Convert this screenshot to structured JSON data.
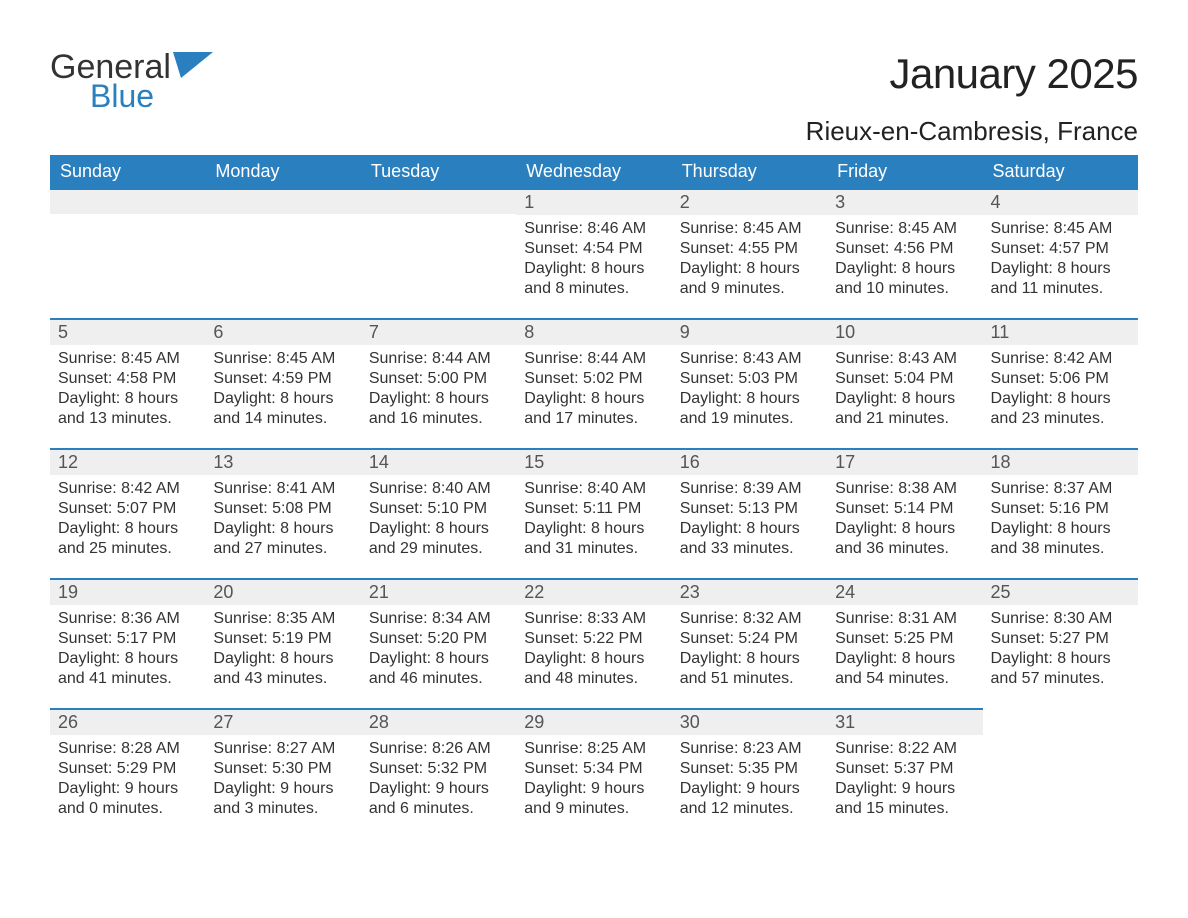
{
  "brand": {
    "part1": "General",
    "part2": "Blue"
  },
  "title": "January 2025",
  "location": "Rieux-en-Cambresis, France",
  "colors": {
    "header_bg": "#2a7fbf",
    "header_text": "#ffffff",
    "daynum_bg": "#efefef",
    "daynum_text": "#555555",
    "body_text": "#333333",
    "border_top": "#2a7fbf",
    "page_bg": "#ffffff",
    "logo_blue": "#2a7fbf"
  },
  "typography": {
    "title_fontsize": 42,
    "location_fontsize": 26,
    "header_fontsize": 18,
    "daynum_fontsize": 18,
    "body_fontsize": 16
  },
  "days_of_week": [
    "Sunday",
    "Monday",
    "Tuesday",
    "Wednesday",
    "Thursday",
    "Friday",
    "Saturday"
  ],
  "weeks": [
    [
      null,
      null,
      null,
      {
        "n": "1",
        "sunrise": "Sunrise: 8:46 AM",
        "sunset": "Sunset: 4:54 PM",
        "d1": "Daylight: 8 hours",
        "d2": "and 8 minutes."
      },
      {
        "n": "2",
        "sunrise": "Sunrise: 8:45 AM",
        "sunset": "Sunset: 4:55 PM",
        "d1": "Daylight: 8 hours",
        "d2": "and 9 minutes."
      },
      {
        "n": "3",
        "sunrise": "Sunrise: 8:45 AM",
        "sunset": "Sunset: 4:56 PM",
        "d1": "Daylight: 8 hours",
        "d2": "and 10 minutes."
      },
      {
        "n": "4",
        "sunrise": "Sunrise: 8:45 AM",
        "sunset": "Sunset: 4:57 PM",
        "d1": "Daylight: 8 hours",
        "d2": "and 11 minutes."
      }
    ],
    [
      {
        "n": "5",
        "sunrise": "Sunrise: 8:45 AM",
        "sunset": "Sunset: 4:58 PM",
        "d1": "Daylight: 8 hours",
        "d2": "and 13 minutes."
      },
      {
        "n": "6",
        "sunrise": "Sunrise: 8:45 AM",
        "sunset": "Sunset: 4:59 PM",
        "d1": "Daylight: 8 hours",
        "d2": "and 14 minutes."
      },
      {
        "n": "7",
        "sunrise": "Sunrise: 8:44 AM",
        "sunset": "Sunset: 5:00 PM",
        "d1": "Daylight: 8 hours",
        "d2": "and 16 minutes."
      },
      {
        "n": "8",
        "sunrise": "Sunrise: 8:44 AM",
        "sunset": "Sunset: 5:02 PM",
        "d1": "Daylight: 8 hours",
        "d2": "and 17 minutes."
      },
      {
        "n": "9",
        "sunrise": "Sunrise: 8:43 AM",
        "sunset": "Sunset: 5:03 PM",
        "d1": "Daylight: 8 hours",
        "d2": "and 19 minutes."
      },
      {
        "n": "10",
        "sunrise": "Sunrise: 8:43 AM",
        "sunset": "Sunset: 5:04 PM",
        "d1": "Daylight: 8 hours",
        "d2": "and 21 minutes."
      },
      {
        "n": "11",
        "sunrise": "Sunrise: 8:42 AM",
        "sunset": "Sunset: 5:06 PM",
        "d1": "Daylight: 8 hours",
        "d2": "and 23 minutes."
      }
    ],
    [
      {
        "n": "12",
        "sunrise": "Sunrise: 8:42 AM",
        "sunset": "Sunset: 5:07 PM",
        "d1": "Daylight: 8 hours",
        "d2": "and 25 minutes."
      },
      {
        "n": "13",
        "sunrise": "Sunrise: 8:41 AM",
        "sunset": "Sunset: 5:08 PM",
        "d1": "Daylight: 8 hours",
        "d2": "and 27 minutes."
      },
      {
        "n": "14",
        "sunrise": "Sunrise: 8:40 AM",
        "sunset": "Sunset: 5:10 PM",
        "d1": "Daylight: 8 hours",
        "d2": "and 29 minutes."
      },
      {
        "n": "15",
        "sunrise": "Sunrise: 8:40 AM",
        "sunset": "Sunset: 5:11 PM",
        "d1": "Daylight: 8 hours",
        "d2": "and 31 minutes."
      },
      {
        "n": "16",
        "sunrise": "Sunrise: 8:39 AM",
        "sunset": "Sunset: 5:13 PM",
        "d1": "Daylight: 8 hours",
        "d2": "and 33 minutes."
      },
      {
        "n": "17",
        "sunrise": "Sunrise: 8:38 AM",
        "sunset": "Sunset: 5:14 PM",
        "d1": "Daylight: 8 hours",
        "d2": "and 36 minutes."
      },
      {
        "n": "18",
        "sunrise": "Sunrise: 8:37 AM",
        "sunset": "Sunset: 5:16 PM",
        "d1": "Daylight: 8 hours",
        "d2": "and 38 minutes."
      }
    ],
    [
      {
        "n": "19",
        "sunrise": "Sunrise: 8:36 AM",
        "sunset": "Sunset: 5:17 PM",
        "d1": "Daylight: 8 hours",
        "d2": "and 41 minutes."
      },
      {
        "n": "20",
        "sunrise": "Sunrise: 8:35 AM",
        "sunset": "Sunset: 5:19 PM",
        "d1": "Daylight: 8 hours",
        "d2": "and 43 minutes."
      },
      {
        "n": "21",
        "sunrise": "Sunrise: 8:34 AM",
        "sunset": "Sunset: 5:20 PM",
        "d1": "Daylight: 8 hours",
        "d2": "and 46 minutes."
      },
      {
        "n": "22",
        "sunrise": "Sunrise: 8:33 AM",
        "sunset": "Sunset: 5:22 PM",
        "d1": "Daylight: 8 hours",
        "d2": "and 48 minutes."
      },
      {
        "n": "23",
        "sunrise": "Sunrise: 8:32 AM",
        "sunset": "Sunset: 5:24 PM",
        "d1": "Daylight: 8 hours",
        "d2": "and 51 minutes."
      },
      {
        "n": "24",
        "sunrise": "Sunrise: 8:31 AM",
        "sunset": "Sunset: 5:25 PM",
        "d1": "Daylight: 8 hours",
        "d2": "and 54 minutes."
      },
      {
        "n": "25",
        "sunrise": "Sunrise: 8:30 AM",
        "sunset": "Sunset: 5:27 PM",
        "d1": "Daylight: 8 hours",
        "d2": "and 57 minutes."
      }
    ],
    [
      {
        "n": "26",
        "sunrise": "Sunrise: 8:28 AM",
        "sunset": "Sunset: 5:29 PM",
        "d1": "Daylight: 9 hours",
        "d2": "and 0 minutes."
      },
      {
        "n": "27",
        "sunrise": "Sunrise: 8:27 AM",
        "sunset": "Sunset: 5:30 PM",
        "d1": "Daylight: 9 hours",
        "d2": "and 3 minutes."
      },
      {
        "n": "28",
        "sunrise": "Sunrise: 8:26 AM",
        "sunset": "Sunset: 5:32 PM",
        "d1": "Daylight: 9 hours",
        "d2": "and 6 minutes."
      },
      {
        "n": "29",
        "sunrise": "Sunrise: 8:25 AM",
        "sunset": "Sunset: 5:34 PM",
        "d1": "Daylight: 9 hours",
        "d2": "and 9 minutes."
      },
      {
        "n": "30",
        "sunrise": "Sunrise: 8:23 AM",
        "sunset": "Sunset: 5:35 PM",
        "d1": "Daylight: 9 hours",
        "d2": "and 12 minutes."
      },
      {
        "n": "31",
        "sunrise": "Sunrise: 8:22 AM",
        "sunset": "Sunset: 5:37 PM",
        "d1": "Daylight: 9 hours",
        "d2": "and 15 minutes."
      },
      null
    ]
  ]
}
